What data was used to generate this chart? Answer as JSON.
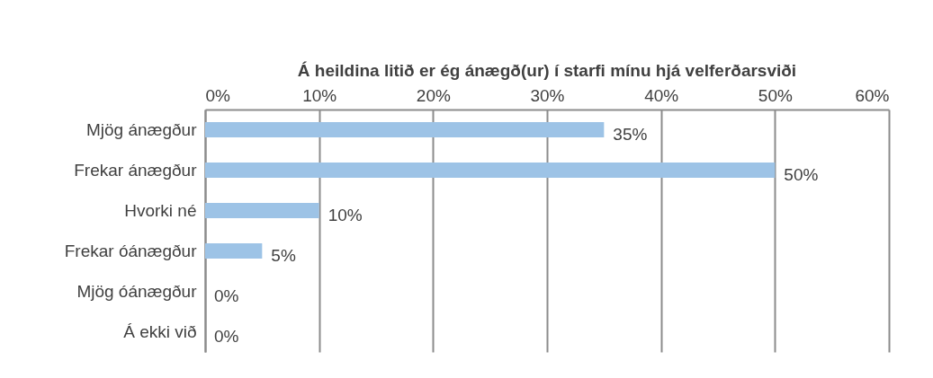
{
  "chart_data": {
    "type": "bar",
    "orientation": "horizontal",
    "title": "Á heildina litið er ég ánægð(ur) í starfi mínu hjá velferðarsviði",
    "categories": [
      "Mjög ánægður",
      "Frekar ánægður",
      "Hvorki né",
      "Frekar óánægður",
      "Mjög óánægður",
      "Á ekki við"
    ],
    "values": [
      35,
      50,
      10,
      5,
      0,
      0
    ],
    "value_labels": [
      "35%",
      "50%",
      "10%",
      "5%",
      "0%",
      "0%"
    ],
    "color": "#9dc3e6",
    "xlim": [
      0,
      60
    ],
    "xticks": [
      {
        "value": 0,
        "label": "0%"
      },
      {
        "value": 10,
        "label": "10%"
      },
      {
        "value": 20,
        "label": "20%"
      },
      {
        "value": 30,
        "label": "30%"
      },
      {
        "value": 40,
        "label": "40%"
      },
      {
        "value": 50,
        "label": "50%"
      },
      {
        "value": 60,
        "label": "60%"
      }
    ],
    "grid": "x"
  }
}
